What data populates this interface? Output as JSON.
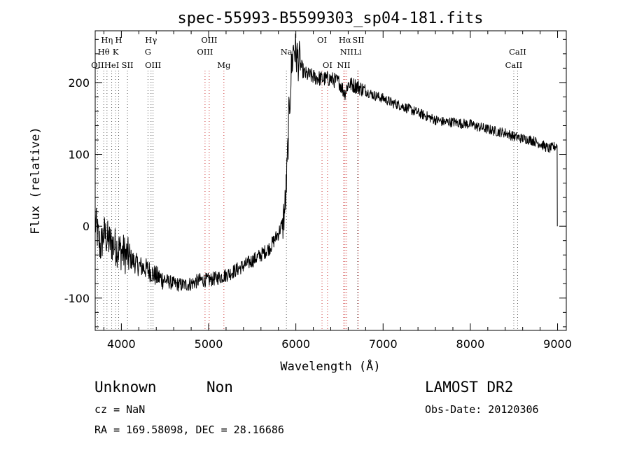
{
  "chart_data": {
    "type": "line",
    "title": "spec-55993-B5599303_sp04-181.fits",
    "xlabel": "Wavelength (Å)",
    "ylabel": "Flux (relative)",
    "xlim": [
      3700,
      9100
    ],
    "ylim": [
      -145,
      272
    ],
    "xticks": [
      4000,
      5000,
      6000,
      7000,
      8000,
      9000
    ],
    "yticks": [
      -100,
      0,
      100,
      200
    ],
    "grid": false,
    "series": [
      {
        "color": "#000000",
        "x": [
          3700,
          3760,
          3800,
          3850,
          3900,
          3950,
          4000,
          4100,
          4200,
          4300,
          4400,
          4500,
          4600,
          4700,
          4800,
          4900,
          5000,
          5100,
          5200,
          5300,
          5400,
          5500,
          5600,
          5700,
          5750,
          5800,
          5850,
          5880,
          5900,
          5920,
          5950,
          5975,
          6000,
          6050,
          6100,
          6200,
          6300,
          6400,
          6500,
          6560,
          6600,
          6700,
          6800,
          6900,
          7000,
          7100,
          7200,
          7300,
          7400,
          7500,
          7600,
          7700,
          7800,
          7900,
          8000,
          8100,
          8200,
          8300,
          8400,
          8500,
          8600,
          8700,
          8800,
          8900,
          8950,
          8990,
          9000
        ],
        "y": [
          5,
          -30,
          -10,
          -20,
          -25,
          -30,
          -35,
          -45,
          -55,
          -60,
          -70,
          -75,
          -80,
          -82,
          -80,
          -75,
          -75,
          -72,
          -68,
          -62,
          -55,
          -48,
          -40,
          -30,
          -20,
          -10,
          5,
          30,
          80,
          150,
          220,
          250,
          240,
          225,
          212,
          208,
          205,
          205,
          200,
          185,
          198,
          195,
          188,
          182,
          178,
          172,
          168,
          163,
          158,
          153,
          148,
          145,
          145,
          143,
          142,
          138,
          135,
          132,
          130,
          125,
          122,
          120,
          115,
          108,
          110,
          112,
          0
        ]
      }
    ],
    "lines": [
      {
        "label": "OII",
        "x": 3727,
        "color": "#555555",
        "row": 3
      },
      {
        "label": "Hθ",
        "x": 3798,
        "color": "#555555",
        "row": 2
      },
      {
        "label": "Hη",
        "x": 3835,
        "color": "#555555",
        "row": 1
      },
      {
        "label": "HeI",
        "x": 3889,
        "color": "#555555",
        "row": 3
      },
      {
        "label": "K",
        "x": 3934,
        "color": "#555555",
        "row": 2
      },
      {
        "label": "H",
        "x": 3969,
        "color": "#555555",
        "row": 1
      },
      {
        "label": "SII",
        "x": 4070,
        "color": "#555555",
        "row": 3
      },
      {
        "label": "Hγ",
        "x": 4340,
        "color": "#555555",
        "row": 1
      },
      {
        "label": "G",
        "x": 4305,
        "color": "#555555",
        "row": 2
      },
      {
        "label": "OIII",
        "x": 4363,
        "color": "#555555",
        "row": 3
      },
      {
        "label": "OIII",
        "x": 4959,
        "color": "#cc3333",
        "row": 2
      },
      {
        "label": "OIII",
        "x": 5007,
        "color": "#cc3333",
        "row": 1
      },
      {
        "label": "Mg",
        "x": 5175,
        "color": "#cc3333",
        "row": 3
      },
      {
        "label": "Na",
        "x": 5892,
        "color": "#555555",
        "row": 2
      },
      {
        "label": "OI",
        "x": 6300,
        "color": "#cc3333",
        "row": 1
      },
      {
        "label": "OI",
        "x": 6363,
        "color": "#cc3333",
        "row": 3
      },
      {
        "label": "NII",
        "x": 6548,
        "color": "#cc3333",
        "row": 3
      },
      {
        "label": "Hα",
        "x": 6563,
        "color": "#cc3333",
        "row": 1
      },
      {
        "label": "NII",
        "x": 6583,
        "color": "#cc3333",
        "row": 2
      },
      {
        "label": "Li",
        "x": 6708,
        "color": "#555555",
        "row": 2
      },
      {
        "label": "SII",
        "x": 6716,
        "color": "#cc3333",
        "row": 1
      },
      {
        "label": "CaII",
        "x": 8498,
        "color": "#555555",
        "row": 3
      },
      {
        "label": "CaII",
        "x": 8542,
        "color": "#555555",
        "row": 2
      }
    ]
  },
  "info": {
    "class": "Unknown",
    "subclass": "Non",
    "survey": "LAMOST DR2",
    "cz": "cz = NaN",
    "obsdate": "Obs-Date: 20120306",
    "radec": "RA = 169.58098, DEC =  28.16686"
  }
}
